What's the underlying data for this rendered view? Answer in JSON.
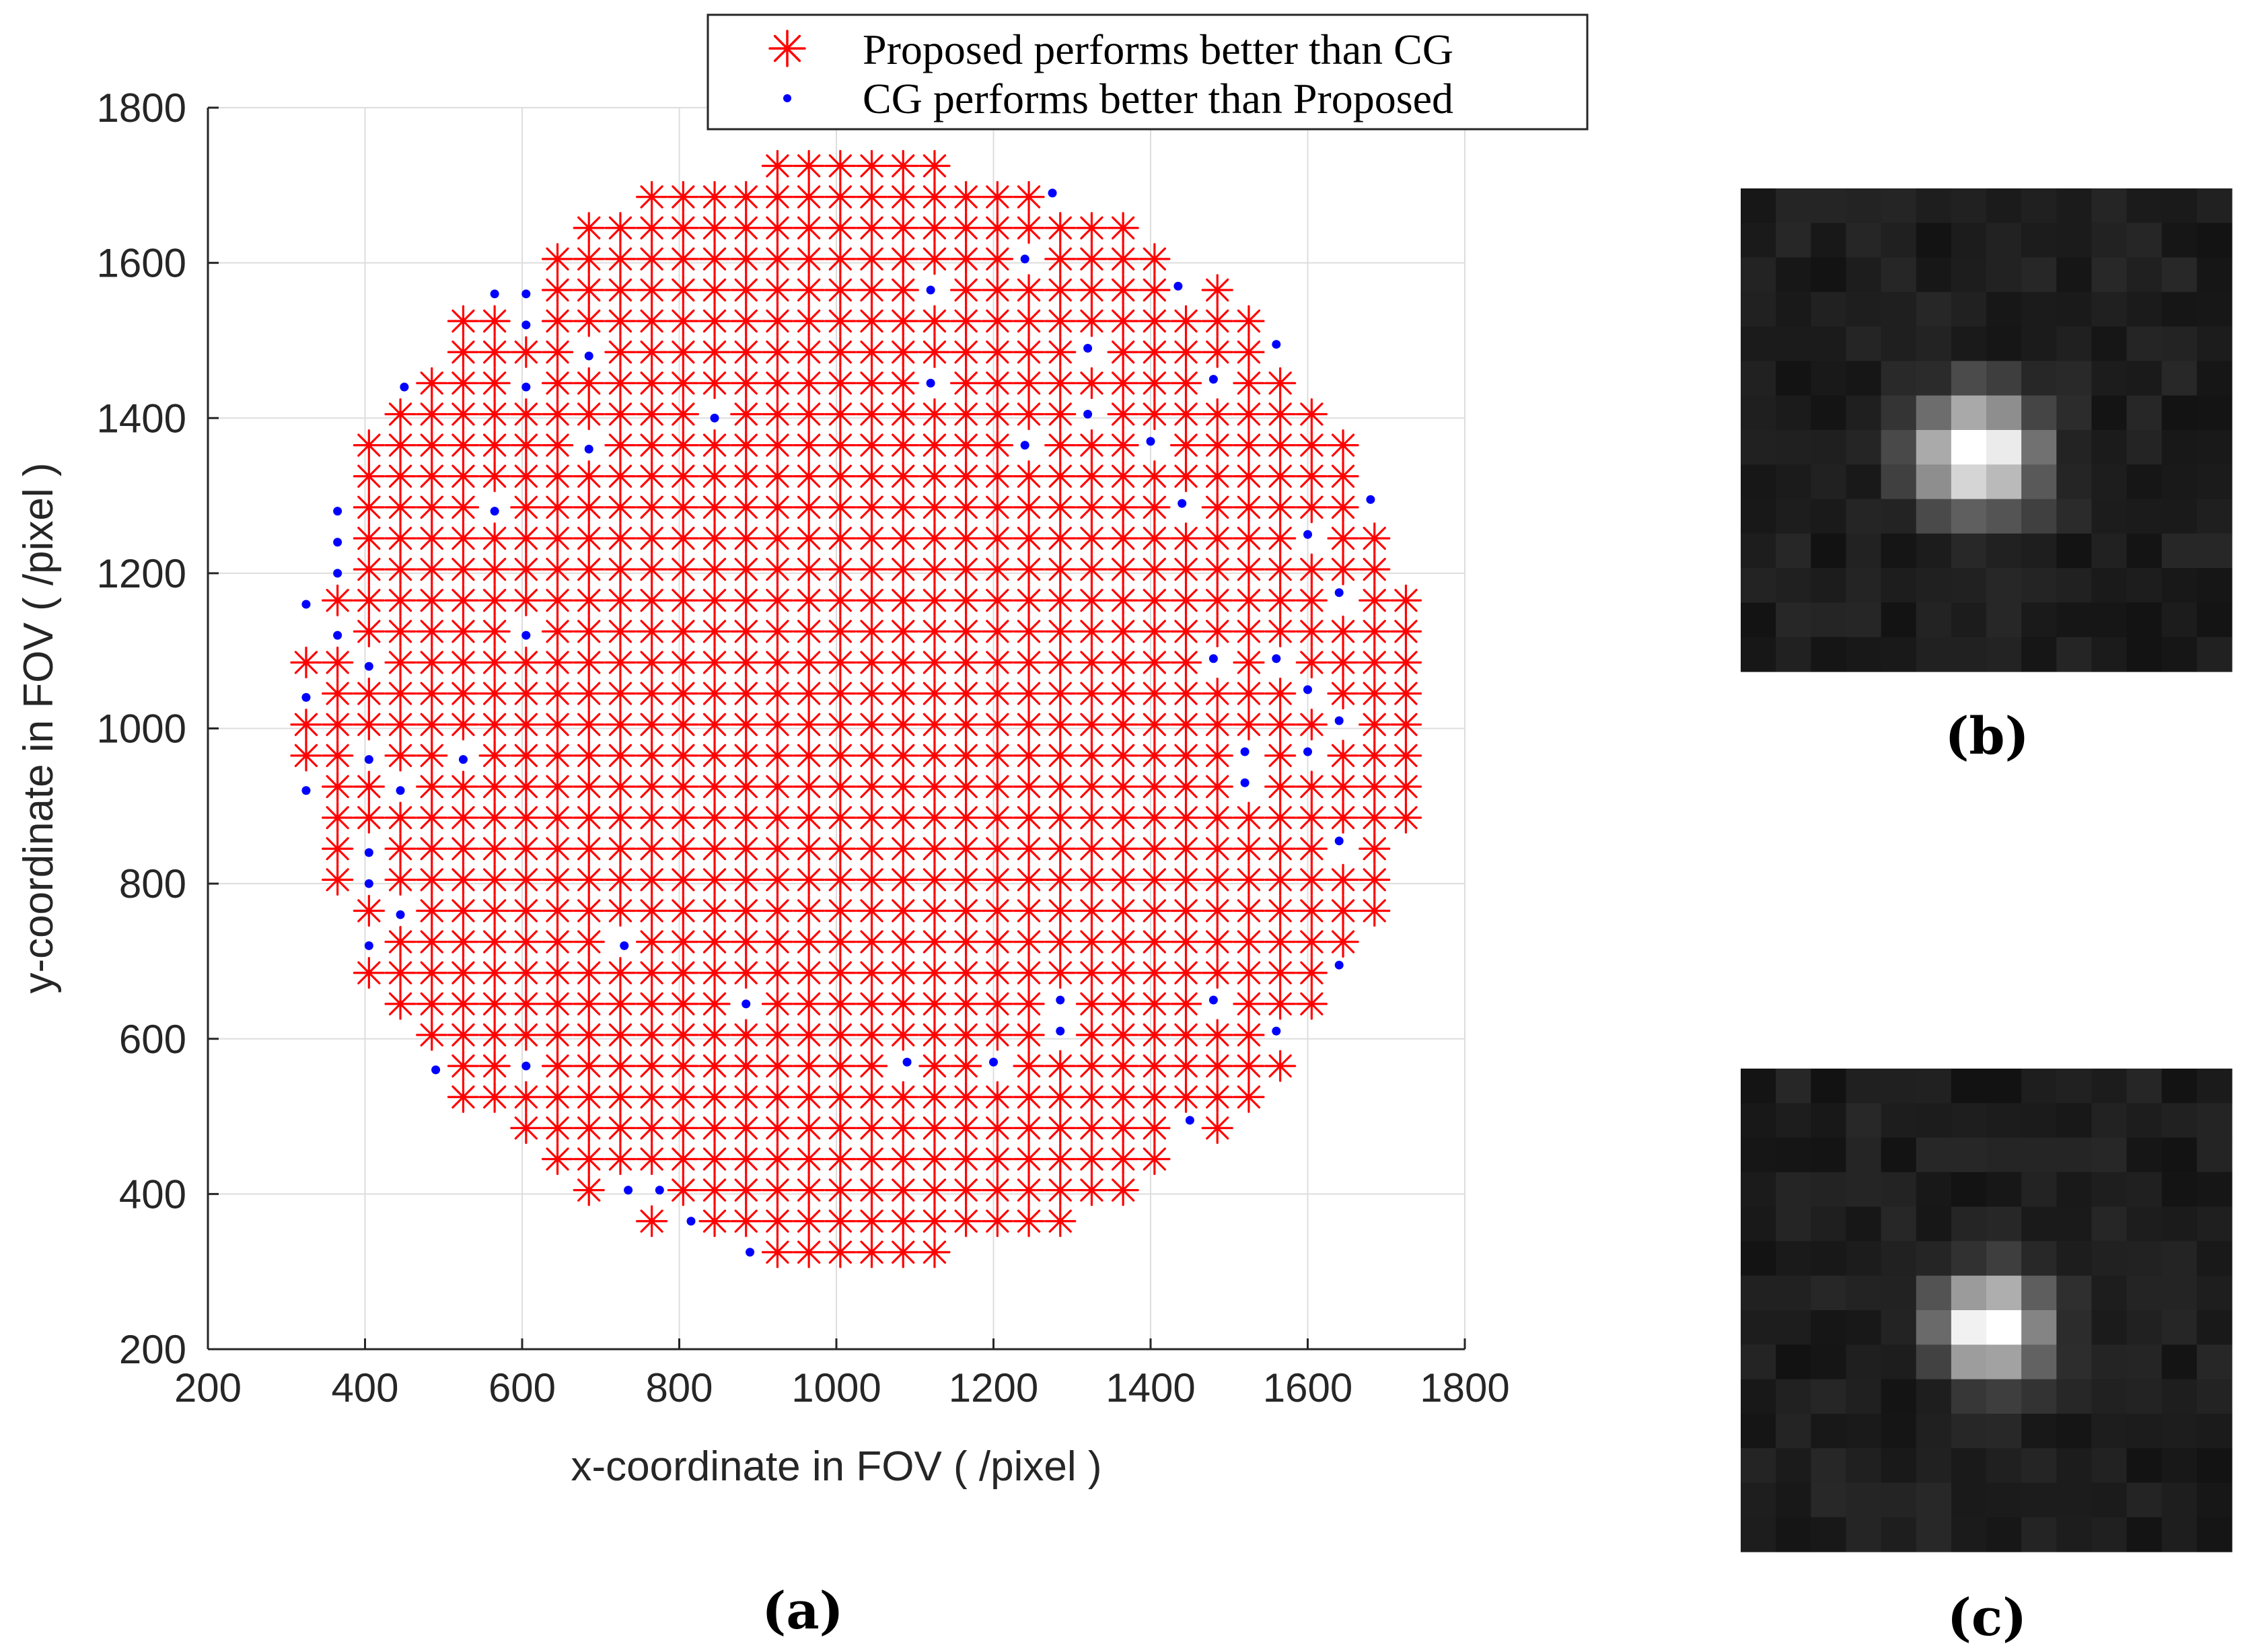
{
  "figure": {
    "caption_a": "(a)",
    "caption_b": "(b)",
    "caption_c": "(c)"
  },
  "colors": {
    "proposed": "#ff0000",
    "cg": "#0000ff",
    "axis": "#262626",
    "grid": "#dddddd",
    "patch_background": "#1a1a1a"
  },
  "chart_data": {
    "type": "scatter",
    "title": "",
    "xlabel": "x-coordinate in FOV ( /pixel )",
    "ylabel": "y-coordinate in FOV ( /pixel )",
    "xlim": [
      200,
      1800
    ],
    "ylim": [
      200,
      1800
    ],
    "xticks": [
      200,
      400,
      600,
      800,
      1000,
      1200,
      1400,
      1600,
      1800
    ],
    "yticks": [
      200,
      400,
      600,
      800,
      1000,
      1200,
      1400,
      1600,
      1800
    ],
    "grid": true,
    "legend_position": "top-right",
    "series": [
      {
        "name": "Proposed performs better than CG",
        "marker": "asterisk",
        "distribution": "regular grid of approx. 40 px spacing filling a disc centred near (1030, 1025) with radius about 710",
        "x_range": [
          320,
          1735
        ],
        "y_range": [
          325,
          1725
        ]
      },
      {
        "name": "CG performs better than Proposed",
        "marker": "dot",
        "points": [
          [
            1275,
            1690
          ],
          [
            1240,
            1605
          ],
          [
            1120,
            1565
          ],
          [
            565,
            1560
          ],
          [
            605,
            1560
          ],
          [
            1435,
            1570
          ],
          [
            605,
            1520
          ],
          [
            685,
            1480
          ],
          [
            1320,
            1490
          ],
          [
            1560,
            1495
          ],
          [
            450,
            1440
          ],
          [
            605,
            1440
          ],
          [
            1120,
            1445
          ],
          [
            1480,
            1450
          ],
          [
            845,
            1400
          ],
          [
            1320,
            1405
          ],
          [
            1240,
            1365
          ],
          [
            1400,
            1370
          ],
          [
            685,
            1360
          ],
          [
            1680,
            1295
          ],
          [
            565,
            1280
          ],
          [
            1440,
            1290
          ],
          [
            365,
            1280
          ],
          [
            365,
            1240
          ],
          [
            365,
            1200
          ],
          [
            1600,
            1250
          ],
          [
            1640,
            1175
          ],
          [
            325,
            1160
          ],
          [
            365,
            1120
          ],
          [
            605,
            1120
          ],
          [
            1480,
            1090
          ],
          [
            1560,
            1090
          ],
          [
            405,
            1080
          ],
          [
            325,
            1040
          ],
          [
            1600,
            1050
          ],
          [
            1640,
            1010
          ],
          [
            405,
            960
          ],
          [
            525,
            960
          ],
          [
            1520,
            970
          ],
          [
            1600,
            970
          ],
          [
            1520,
            930
          ],
          [
            325,
            920
          ],
          [
            445,
            920
          ],
          [
            1640,
            855
          ],
          [
            405,
            840
          ],
          [
            405,
            800
          ],
          [
            445,
            760
          ],
          [
            405,
            720
          ],
          [
            730,
            720
          ],
          [
            1640,
            695
          ],
          [
            885,
            645
          ],
          [
            1285,
            650
          ],
          [
            1480,
            650
          ],
          [
            1285,
            610
          ],
          [
            1560,
            610
          ],
          [
            1090,
            570
          ],
          [
            1200,
            570
          ],
          [
            490,
            560
          ],
          [
            605,
            565
          ],
          [
            1450,
            495
          ],
          [
            735,
            405
          ],
          [
            775,
            405
          ],
          [
            815,
            365
          ],
          [
            890,
            325
          ]
        ]
      }
    ]
  },
  "patches": [
    {
      "id": "b",
      "grid_size": [
        14,
        14
      ],
      "spot_center": [
        6.3,
        7.2
      ],
      "spot_sigma": 1.15,
      "peak_intensity": 255
    },
    {
      "id": "c",
      "grid_size": [
        14,
        14
      ],
      "spot_center": [
        6.6,
        7.0
      ],
      "spot_sigma": 1.0,
      "peak_intensity": 255
    }
  ]
}
